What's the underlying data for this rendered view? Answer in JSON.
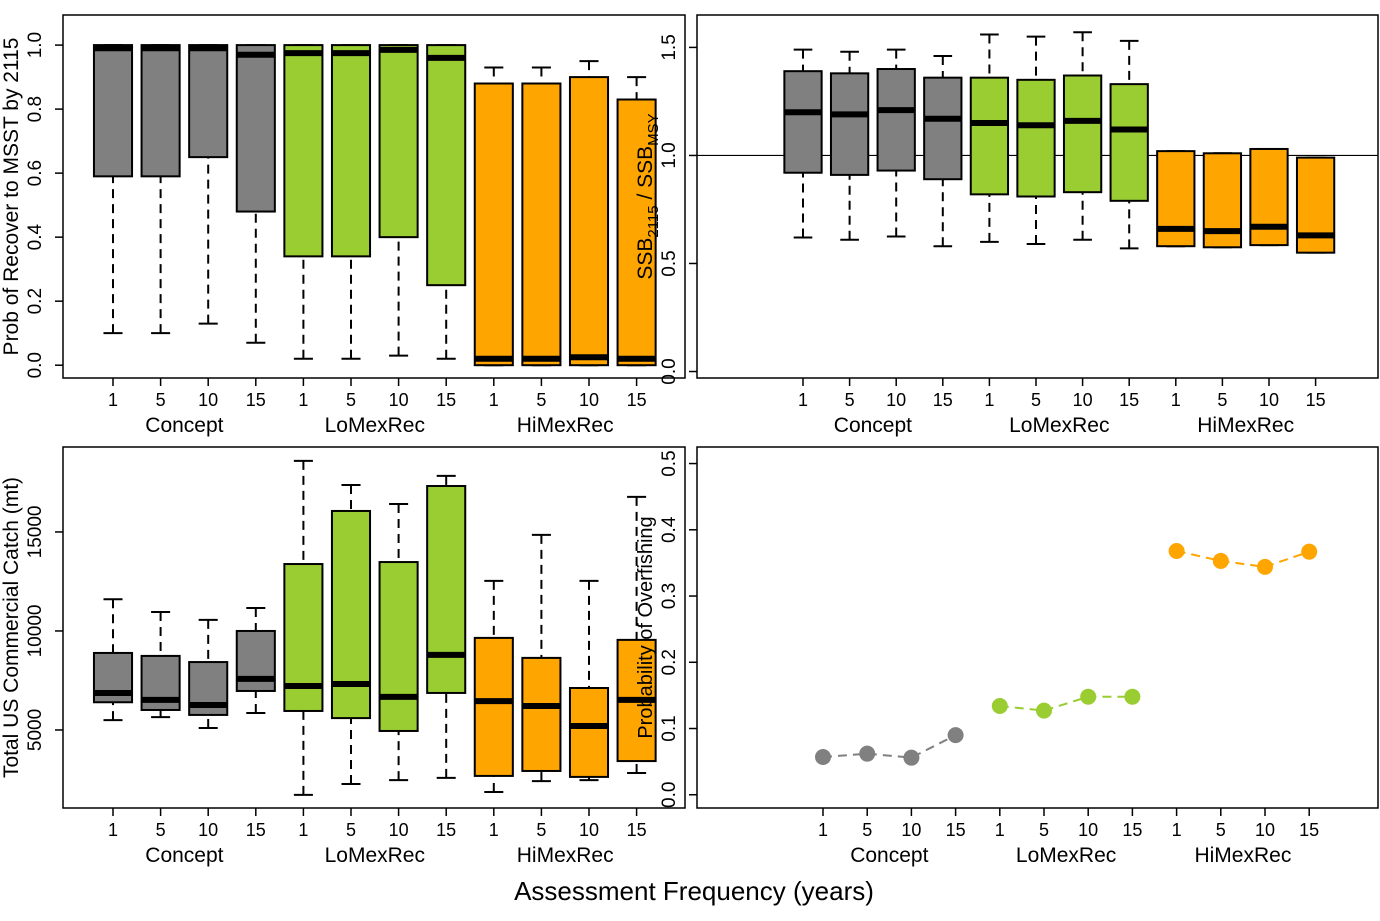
{
  "x_label": "Assessment Frequency (years)",
  "chart_data": [
    {
      "type": "box",
      "y_label": "Prob of Recover to MSST by 2115",
      "categories": [
        "1",
        "5",
        "10",
        "15",
        "1",
        "5",
        "10",
        "15",
        "1",
        "5",
        "10",
        "15"
      ],
      "groups": [
        "Concept",
        "LoMexRec",
        "HiMexRec"
      ],
      "group_colors": [
        "#808080",
        "#9acd32",
        "#ffa500"
      ],
      "ylim": [
        -0.04,
        1.094
      ],
      "yticks": [
        {
          "value": 0,
          "label": "0.0"
        },
        0.2,
        0.4,
        0.6,
        0.8,
        {
          "value": 1,
          "label": "1.0"
        }
      ],
      "stats": [
        [
          0.1,
          0.59,
          0.99,
          1.0,
          1.0
        ],
        [
          0.1,
          0.59,
          0.99,
          1.0,
          1.0
        ],
        [
          0.13,
          0.65,
          0.99,
          1.0,
          1.0
        ],
        [
          0.07,
          0.48,
          0.97,
          1.0,
          1.0
        ],
        [
          0.02,
          0.34,
          0.975,
          1.0,
          1.0
        ],
        [
          0.02,
          0.34,
          0.975,
          1.0,
          1.0
        ],
        [
          0.03,
          0.4,
          0.985,
          1.0,
          1.0
        ],
        [
          0.02,
          0.25,
          0.96,
          1.0,
          1.0
        ],
        [
          0.0,
          0.0,
          0.02,
          0.88,
          0.93
        ],
        [
          0.0,
          0.0,
          0.02,
          0.88,
          0.93
        ],
        [
          0.0,
          0.0,
          0.025,
          0.9,
          0.95
        ],
        [
          0.0,
          0.0,
          0.02,
          0.83,
          0.9
        ]
      ]
    },
    {
      "type": "box",
      "y_label_parts": [
        "SSB",
        "2115",
        " / SSB",
        "MSY"
      ],
      "categories": [
        "1",
        "5",
        "10",
        "15",
        "1",
        "5",
        "10",
        "15",
        "1",
        "5",
        "10",
        "15"
      ],
      "groups": [
        "Concept",
        "LoMexRec",
        "HiMexRec"
      ],
      "group_colors": [
        "#808080",
        "#9acd32",
        "#ffa500"
      ],
      "ylim": [
        -0.03,
        1.65
      ],
      "yticks": [
        {
          "value": 0,
          "label": "0.0"
        },
        0.5,
        {
          "value": 1,
          "label": "1.0"
        },
        1.5
      ],
      "reference_line": 1,
      "stats": [
        [
          0.62,
          0.92,
          1.2,
          1.39,
          1.49
        ],
        [
          0.61,
          0.91,
          1.19,
          1.38,
          1.48
        ],
        [
          0.625,
          0.93,
          1.21,
          1.4,
          1.49
        ],
        [
          0.58,
          0.89,
          1.17,
          1.36,
          1.46
        ],
        [
          0.6,
          0.82,
          1.15,
          1.36,
          1.56
        ],
        [
          0.59,
          0.81,
          1.14,
          1.35,
          1.55
        ],
        [
          0.61,
          0.83,
          1.16,
          1.37,
          1.57
        ],
        [
          0.57,
          0.79,
          1.12,
          1.33,
          1.53
        ],
        [
          0.58,
          0.58,
          0.66,
          1.02,
          1.02
        ],
        [
          0.575,
          0.575,
          0.65,
          1.01,
          1.01
        ],
        [
          0.585,
          0.585,
          0.67,
          1.03,
          1.03
        ],
        [
          0.55,
          0.55,
          0.63,
          0.99,
          0.99
        ]
      ]
    },
    {
      "type": "box",
      "y_label": "Total US Commercial Catch (mt)",
      "categories": [
        "1",
        "5",
        "10",
        "15",
        "1",
        "5",
        "10",
        "15",
        "1",
        "5",
        "10",
        "15"
      ],
      "groups": [
        "Concept",
        "LoMexRec",
        "HiMexRec"
      ],
      "group_colors": [
        "#808080",
        "#9acd32",
        "#ffa500"
      ],
      "ylim": [
        1060,
        19290
      ],
      "yticks": [
        5000,
        10000,
        15000
      ],
      "stats": [
        [
          5500,
          6400,
          6870,
          8890,
          11600
        ],
        [
          5650,
          6010,
          6520,
          8740,
          10960
        ],
        [
          5100,
          5760,
          6260,
          8430,
          10560
        ],
        [
          5860,
          6970,
          7580,
          10000,
          11160
        ],
        [
          1720,
          5960,
          7220,
          13380,
          18590
        ],
        [
          2270,
          5600,
          7320,
          16060,
          17370
        ],
        [
          2470,
          4950,
          6670,
          13480,
          16410
        ],
        [
          2580,
          6870,
          8790,
          17320,
          17830
        ],
        [
          1870,
          2680,
          6460,
          9650,
          12530
        ],
        [
          2420,
          2930,
          6210,
          8640,
          14850
        ],
        [
          2470,
          2630,
          5200,
          7120,
          12530
        ],
        [
          2830,
          3430,
          6520,
          9550,
          16770
        ]
      ]
    },
    {
      "type": "dotline",
      "y_label": "Probability of Overfishing",
      "categories": [
        "1",
        "5",
        "10",
        "15",
        "1",
        "5",
        "10",
        "15",
        "1",
        "5",
        "10",
        "15"
      ],
      "groups": [
        "Concept",
        "LoMexRec",
        "HiMexRec"
      ],
      "group_colors": [
        "#808080",
        "#9acd32",
        "#ffa500"
      ],
      "ylim": [
        -0.02,
        0.525
      ],
      "yticks": [
        {
          "value": 0,
          "label": "0.0"
        },
        0.1,
        0.2,
        0.3,
        0.4,
        0.5
      ],
      "values": [
        0.057,
        0.062,
        0.056,
        0.09,
        0.134,
        0.127,
        0.148,
        0.148,
        0.368,
        0.353,
        0.344,
        0.367
      ]
    }
  ]
}
